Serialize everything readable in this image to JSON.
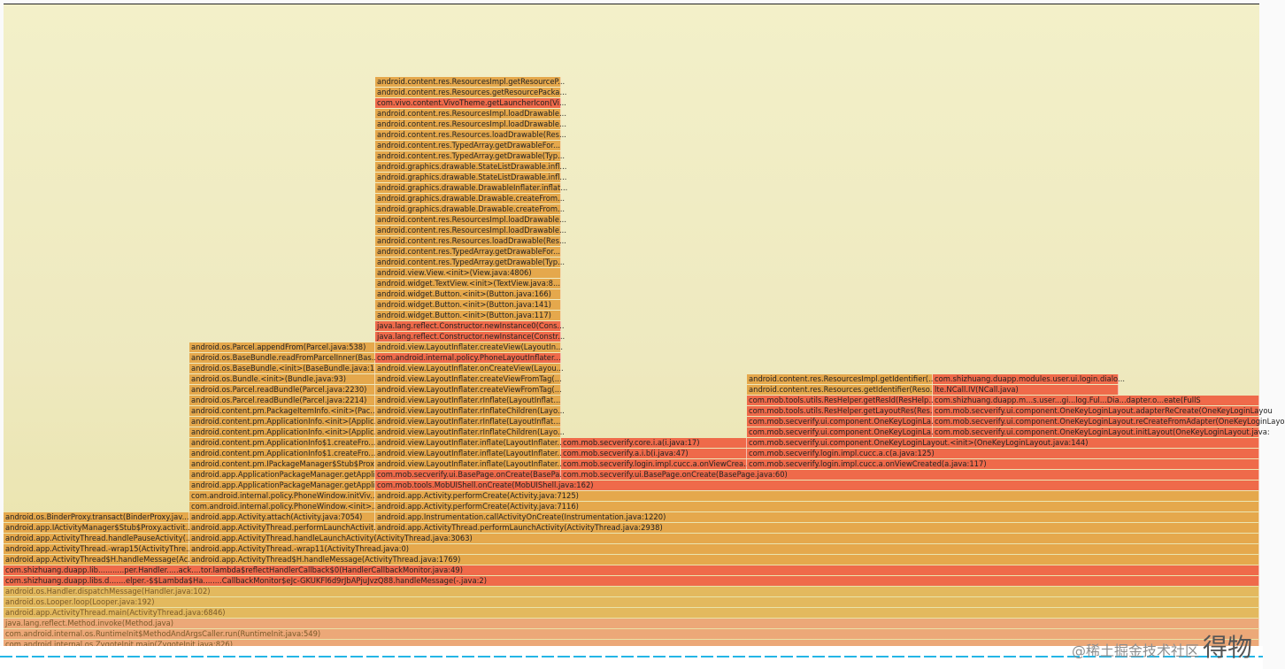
{
  "watermark": {
    "text": "@稀土掘金技术社区",
    "big": "得物"
  },
  "colors": {
    "o": "#e5a84c",
    "r": "#ef6a4a",
    "y": "#e3b95e",
    "l": "#eca878"
  },
  "rows": [
    {
      "cells": [
        {
          "label": "android.content.res.ResourcesImpl.getResourceP...",
          "c": "o"
        }
      ]
    },
    {
      "cells": [
        {
          "label": "android.content.res.Resources.getResourcePacka...",
          "c": "o"
        }
      ]
    },
    {
      "cells": [
        {
          "label": "com.vivo.content.VivoTheme.getLauncherIcon(Vi...",
          "c": "r"
        }
      ]
    },
    {
      "cells": [
        {
          "label": "android.content.res.ResourcesImpl.loadDrawable...",
          "c": "o"
        }
      ]
    },
    {
      "cells": [
        {
          "label": "android.content.res.ResourcesImpl.loadDrawable...",
          "c": "o"
        }
      ]
    },
    {
      "cells": [
        {
          "label": "android.content.res.Resources.loadDrawable(Res...",
          "c": "o"
        }
      ]
    },
    {
      "cells": [
        {
          "label": "android.content.res.TypedArray.getDrawableFor...",
          "c": "o"
        }
      ]
    },
    {
      "cells": [
        {
          "label": "android.content.res.TypedArray.getDrawable(Typ...",
          "c": "o"
        }
      ]
    },
    {
      "cells": [
        {
          "label": "android.graphics.drawable.StateListDrawable.infl...",
          "c": "o"
        }
      ]
    },
    {
      "cells": [
        {
          "label": "android.graphics.drawable.StateListDrawable.infl...",
          "c": "o"
        }
      ]
    },
    {
      "cells": [
        {
          "label": "android.graphics.drawable.DrawableInflater.inflat...",
          "c": "o"
        }
      ]
    },
    {
      "cells": [
        {
          "label": "android.graphics.drawable.Drawable.createFrom...",
          "c": "o"
        }
      ]
    },
    {
      "cells": [
        {
          "label": "android.graphics.drawable.Drawable.createFrom...",
          "c": "o"
        }
      ]
    },
    {
      "cells": [
        {
          "label": "android.content.res.ResourcesImpl.loadDrawable...",
          "c": "o"
        }
      ]
    },
    {
      "cells": [
        {
          "label": "android.content.res.ResourcesImpl.loadDrawable...",
          "c": "o"
        }
      ]
    },
    {
      "cells": [
        {
          "label": "android.content.res.Resources.loadDrawable(Res...",
          "c": "o"
        }
      ]
    },
    {
      "cells": [
        {
          "label": "android.content.res.TypedArray.getDrawableFor...",
          "c": "o"
        }
      ]
    },
    {
      "cells": [
        {
          "label": "android.content.res.TypedArray.getDrawable(Typ...",
          "c": "o"
        }
      ]
    },
    {
      "cells": [
        {
          "label": "android.view.View.<init>(View.java:4806)",
          "c": "o"
        }
      ]
    },
    {
      "cells": [
        {
          "label": "android.widget.TextView.<init>(TextView.java:8...",
          "c": "o"
        }
      ]
    },
    {
      "cells": [
        {
          "label": "android.widget.Button.<init>(Button.java:166)",
          "c": "o"
        }
      ]
    },
    {
      "cells": [
        {
          "label": "android.widget.Button.<init>(Button.java:141)",
          "c": "o"
        }
      ]
    },
    {
      "cells": [
        {
          "label": "android.widget.Button.<init>(Button.java:117)",
          "c": "o"
        }
      ]
    },
    {
      "cells": [
        {
          "label": "java.lang.reflect.Constructor.newInstance0(Cons...",
          "c": "r"
        }
      ]
    },
    {
      "cells": [
        {
          "label": "java.lang.reflect.Constructor.newInstance(Constr...",
          "c": "r"
        }
      ]
    },
    {
      "cells": [
        {
          "label": "android.os.Parcel.appendFrom(Parcel.java:538)",
          "c": "o"
        },
        {
          "label": "android.view.LayoutInflater.createView(LayoutIn...",
          "c": "o"
        }
      ]
    },
    {
      "cells": [
        {
          "label": "android.os.BaseBundle.readFromParcelInner(Bas...",
          "c": "o"
        },
        {
          "label": "com.android.internal.policy.PhoneLayoutInflater...",
          "c": "r"
        }
      ]
    },
    {
      "cells": [
        {
          "label": "android.os.BaseBundle.<init>(BaseBundle.java:1...",
          "c": "o"
        },
        {
          "label": "android.view.LayoutInflater.onCreateView(Layou...",
          "c": "o"
        }
      ]
    },
    {
      "cells": [
        {
          "label": "android.os.Bundle.<init>(Bundle.java:93)",
          "c": "o"
        },
        {
          "label": "android.view.LayoutInflater.createViewFromTag(...",
          "c": "o"
        },
        {
          "label": "android.content.res.ResourcesImpl.getIdentifier(...",
          "c": "o"
        },
        {
          "label": "com.shizhuang.duapp.modules.user.ui.login.dialo...",
          "c": "r"
        }
      ]
    },
    {
      "cells": [
        {
          "label": "android.os.Parcel.readBundle(Parcel.java:2230)",
          "c": "o"
        },
        {
          "label": "android.view.LayoutInflater.createViewFromTag(...",
          "c": "o"
        },
        {
          "label": "android.content.res.Resources.getIdentifier(Reso...",
          "c": "o"
        },
        {
          "label": "lte.NCall.IV(NCall.java)",
          "c": "r"
        }
      ]
    },
    {
      "cells": [
        {
          "label": "android.os.Parcel.readBundle(Parcel.java:2214)",
          "c": "o"
        },
        {
          "label": "android.view.LayoutInflater.rInflate(LayoutInflat...",
          "c": "o"
        },
        {
          "label": "com.mob.tools.utils.ResHelper.getResId(ResHelp...",
          "c": "r"
        },
        {
          "label": "com.shizhuang.duapp.m...s.user...gi...log.Ful...Dia...dapter.o...eate(FullS",
          "c": "r"
        }
      ]
    },
    {
      "cells": [
        {
          "label": "android.content.pm.PackageItemInfo.<init>(Pac...",
          "c": "o"
        },
        {
          "label": "android.view.LayoutInflater.rInflateChildren(Layo...",
          "c": "o"
        },
        {
          "label": "com.mob.tools.utils.ResHelper.getLayoutRes(Res...",
          "c": "r"
        },
        {
          "label": "com.mob.secverify.ui.component.OneKeyLoginLayout.adapterReCreate(OneKeyLoginLayou",
          "c": "r"
        }
      ]
    },
    {
      "cells": [
        {
          "label": "android.content.pm.ApplicationInfo.<init>(Applic...",
          "c": "o"
        },
        {
          "label": "android.view.LayoutInflater.rInflate(LayoutInflat...",
          "c": "o"
        },
        {
          "label": "com.mob.secverify.ui.component.OneKeyLoginLa...",
          "c": "r"
        },
        {
          "label": "com.mob.secverify.ui.component.OneKeyLoginLayout.reCreateFromAdapter(OneKeyLoginLayo",
          "c": "r"
        }
      ]
    },
    {
      "cells": [
        {
          "label": "android.content.pm.ApplicationInfo.<init>(Applic...",
          "c": "o"
        },
        {
          "label": "android.view.LayoutInflater.rInflateChildren(Layo...",
          "c": "o"
        },
        {
          "label": "com.mob.secverify.ui.component.OneKeyLoginLa...",
          "c": "r"
        },
        {
          "label": "com.mob.secverify.ui.component.OneKeyLoginLayout.initLayout(OneKeyLoginLayout.java:",
          "c": "r"
        }
      ]
    },
    {
      "cells": [
        {
          "label": "android.content.pm.ApplicationInfo$1.createFro...",
          "c": "o"
        },
        {
          "label": "android.view.LayoutInflater.inflate(LayoutInflater...",
          "c": "o"
        },
        {
          "label": "com.mob.secverify.core.i.a(i.java:17)",
          "c": "r"
        },
        {
          "label": "com.mob.secverify.ui.component.OneKeyLoginLayout.<init>(OneKeyLoginLayout.java:144)",
          "c": "r"
        }
      ]
    },
    {
      "cells": [
        {
          "label": "android.content.pm.ApplicationInfo$1.createFro...",
          "c": "o"
        },
        {
          "label": "android.view.LayoutInflater.inflate(LayoutInflater...",
          "c": "o"
        },
        {
          "label": "com.mob.secverify.a.i.b(i.java:47)",
          "c": "r"
        },
        {
          "label": "com.mob.secverify.login.impl.cucc.a.c(a.java:125)",
          "c": "r"
        }
      ]
    },
    {
      "cells": [
        {
          "label": "android.content.pm.IPackageManager$Stub$Prox...",
          "c": "o"
        },
        {
          "label": "android.view.LayoutInflater.inflate(LayoutInflater...",
          "c": "o"
        },
        {
          "label": "com.mob.secverify.login.impl.cucc.a.onViewCrea...",
          "c": "r"
        },
        {
          "label": "com.mob.secverify.login.impl.cucc.a.onViewCreated(a.java:117)",
          "c": "r"
        }
      ]
    },
    {
      "cells": [
        {
          "label": "android.app.ApplicationPackageManager.getAppli...",
          "c": "o"
        },
        {
          "label": "com.mob.secverify.ui.BasePage.onCreate(BasePa...",
          "c": "r"
        },
        {
          "label": "com.mob.secverify.ui.BasePage.onCreate(BasePage.java:60)",
          "c": "r"
        }
      ]
    },
    {
      "cells": [
        {
          "label": "android.app.ApplicationPackageManager.getAppli...",
          "c": "o"
        },
        {
          "label": "com.mob.tools.MobUIShell.onCreate(MobUIShell.java:162)",
          "c": "r"
        }
      ]
    },
    {
      "cells": [
        {
          "label": "com.android.internal.policy.PhoneWindow.initViv...",
          "c": "o"
        },
        {
          "label": "android.app.Activity.performCreate(Activity.java:7125)",
          "c": "o"
        }
      ]
    },
    {
      "cells": [
        {
          "label": "com.android.internal.policy.PhoneWindow.<init>...",
          "c": "o"
        },
        {
          "label": "android.app.Activity.performCreate(Activity.java:7116)",
          "c": "o"
        }
      ]
    },
    {
      "cells": [
        {
          "label": "android.os.BinderProxy.transact(BinderProxy.jav...",
          "c": "o"
        },
        {
          "label": "android.app.Activity.attach(Activity.java:7054)",
          "c": "o"
        },
        {
          "label": "android.app.Instrumentation.callActivityOnCreate(Instrumentation.java:1220)",
          "c": "o"
        }
      ]
    },
    {
      "cells": [
        {
          "label": "android.app.IActivityManager$Stub$Proxy.activit...",
          "c": "o"
        },
        {
          "label": "android.app.ActivityThread.performLaunchActivit...",
          "c": "o"
        },
        {
          "label": "android.app.ActivityThread.performLaunchActivity(ActivityThread.java:2938)",
          "c": "o"
        }
      ]
    },
    {
      "cells": [
        {
          "label": "android.app.ActivityThread.handlePauseActivity(...",
          "c": "o"
        },
        {
          "label": "android.app.ActivityThread.handleLaunchActivity(ActivityThread.java:3063)",
          "c": "o"
        }
      ]
    },
    {
      "cells": [
        {
          "label": "android.app.ActivityThread.-wrap15(ActivityThre...",
          "c": "o"
        },
        {
          "label": "android.app.ActivityThread.-wrap11(ActivityThread.java:0)",
          "c": "o"
        }
      ]
    },
    {
      "cells": [
        {
          "label": "android.app.ActivityThread$H.handleMessage(Ac...",
          "c": "o"
        },
        {
          "label": "android.app.ActivityThread$H.handleMessage(ActivityThread.java:1769)",
          "c": "o"
        }
      ]
    },
    {
      "cells": [
        {
          "label": "com.shizhuang.duapp.lib...........per.Handler.....ack....tor.lambda$reflectHandlerCallback$0(HandlerCallbackMonitor.java:49)",
          "c": "r"
        }
      ]
    },
    {
      "cells": [
        {
          "label": "com.shizhuang.duapp.libs.d.......elper.-$$Lambda$Ha........CallbackMonitor$eJc-GKUKFl6d9rJbAPjuJvzQ88.handleMessage(-.java:2)",
          "c": "r"
        }
      ]
    },
    {
      "cells": [
        {
          "label": "android.os.Handler.dispatchMessage(Handler.java:102)",
          "c": "y"
        }
      ]
    },
    {
      "cells": [
        {
          "label": "android.os.Looper.loop(Looper.java:192)",
          "c": "y"
        }
      ]
    },
    {
      "cells": [
        {
          "label": "android.app.ActivityThread.main(ActivityThread.java:6846)",
          "c": "y"
        }
      ]
    },
    {
      "cells": [
        {
          "label": "java.lang.reflect.Method.invoke(Method.java)",
          "c": "l"
        }
      ]
    },
    {
      "cells": [
        {
          "label": "com.android.internal.os.RuntimeInit$MethodAndArgsCaller.run(RuntimeInit.java:549)",
          "c": "l"
        }
      ]
    },
    {
      "cells": [
        {
          "label": "com.android.internal.os.ZygoteInit.main(ZygoteInit.java:826)",
          "c": "l"
        }
      ]
    }
  ]
}
